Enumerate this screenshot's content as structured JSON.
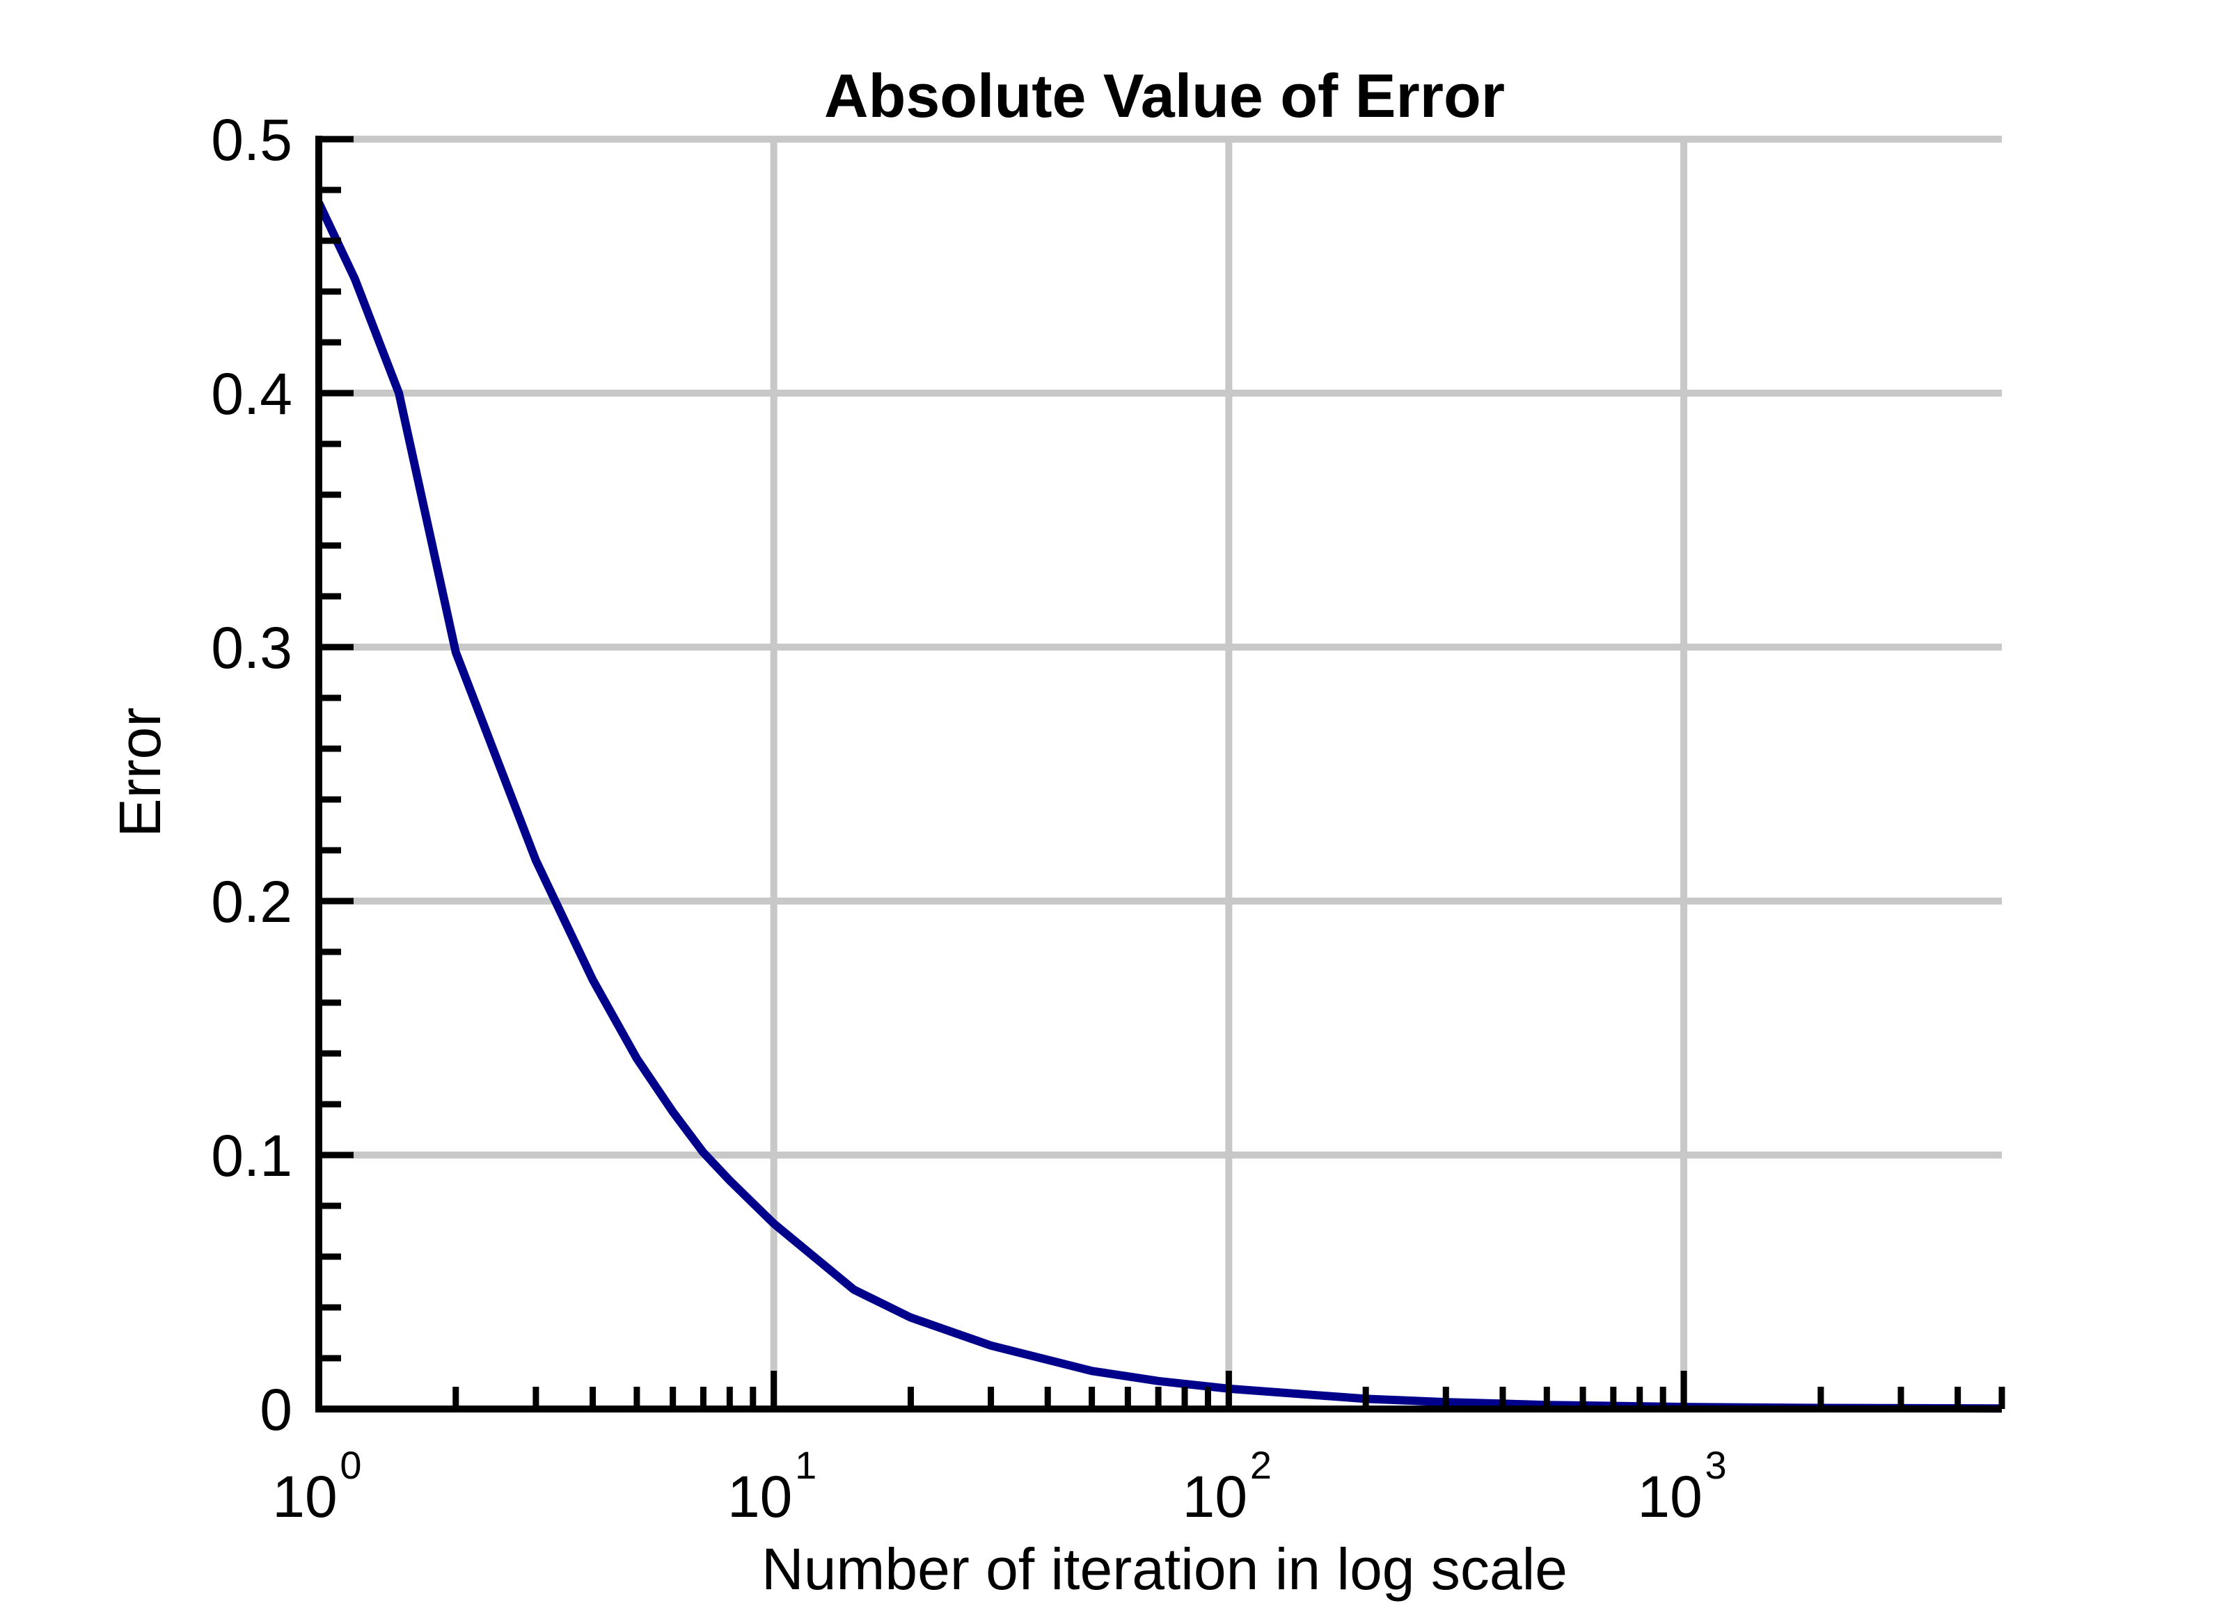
{
  "chart_data": {
    "type": "line",
    "title": "Absolute Value of Error",
    "xlabel": "Number of iteration in log scale",
    "ylabel": "Error",
    "xscale": "log",
    "xlim": [
      1,
      5000
    ],
    "ylim": [
      0,
      0.5
    ],
    "grid": true,
    "legend": "none",
    "x_ticks": [
      {
        "value": 1,
        "base": "10",
        "exp": "0"
      },
      {
        "value": 10,
        "base": "10",
        "exp": "1"
      },
      {
        "value": 100,
        "base": "10",
        "exp": "2"
      },
      {
        "value": 1000,
        "base": "10",
        "exp": "3"
      }
    ],
    "y_ticks": [
      {
        "value": 0,
        "label": "0"
      },
      {
        "value": 0.1,
        "label": "0.1"
      },
      {
        "value": 0.2,
        "label": "0.2"
      },
      {
        "value": 0.3,
        "label": "0.3"
      },
      {
        "value": 0.4,
        "label": "0.4"
      },
      {
        "value": 0.5,
        "label": "0.5"
      }
    ],
    "series": [
      {
        "color": "#00008B",
        "x": [
          1,
          1.2,
          1.5,
          2,
          3,
          4,
          5,
          6,
          7,
          8,
          10,
          15,
          20,
          30,
          50,
          70,
          100,
          200,
          300,
          500,
          1000,
          2000,
          5000
        ],
        "y": [
          0.475,
          0.445,
          0.4,
          0.298,
          0.216,
          0.169,
          0.138,
          0.117,
          0.101,
          0.09,
          0.073,
          0.047,
          0.036,
          0.025,
          0.015,
          0.011,
          0.008,
          0.004,
          0.0027,
          0.0016,
          0.0008,
          0.0004,
          0.0002
        ]
      }
    ]
  }
}
